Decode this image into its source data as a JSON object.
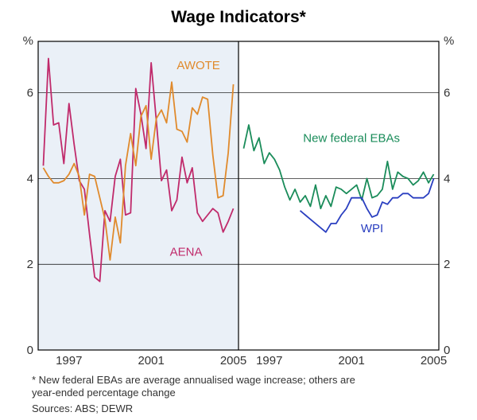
{
  "title": "Wage Indicators*",
  "title_fontsize": 21,
  "title_fontweight": "bold",
  "yaxis_label_left": "%",
  "yaxis_label_right": "%",
  "axis_font_color": "#333333",
  "tick_fontsize": 15,
  "footnote": "*  New federal EBAs are average annualised wage increase; others are\n    year-ended percentage change",
  "sources": "Sources:  ABS; DEWR",
  "footnote_fontsize": 13,
  "footnote_color": "#333333",
  "plot_bg_left": "#eaf0f7",
  "plot_bg_right": "#ffffff",
  "gridline_color": "#000000",
  "frame_color": "#000000",
  "ylim": [
    0,
    7.2
  ],
  "yticks": [
    0,
    2,
    4,
    6
  ],
  "xlim": [
    1995.5,
    2005.25
  ],
  "xticks": [
    1997,
    2001,
    2005
  ],
  "line_width": 1.8,
  "series": {
    "AWOTE": {
      "color": "#e08a2c",
      "label": "AWOTE",
      "label_x": 2003.3,
      "label_y": 6.55,
      "points": [
        [
          1995.75,
          4.25
        ],
        [
          1996,
          4.05
        ],
        [
          1996.25,
          3.9
        ],
        [
          1996.5,
          3.9
        ],
        [
          1996.75,
          3.95
        ],
        [
          1997,
          4.1
        ],
        [
          1997.25,
          4.35
        ],
        [
          1997.5,
          4.05
        ],
        [
          1997.75,
          3.15
        ],
        [
          1998,
          4.1
        ],
        [
          1998.25,
          4.05
        ],
        [
          1998.5,
          3.55
        ],
        [
          1998.75,
          3.05
        ],
        [
          1999,
          2.1
        ],
        [
          1999.25,
          3.1
        ],
        [
          1999.5,
          2.5
        ],
        [
          1999.75,
          4.3
        ],
        [
          2000,
          5.05
        ],
        [
          2000.25,
          4.3
        ],
        [
          2000.5,
          5.45
        ],
        [
          2000.75,
          5.7
        ],
        [
          2001,
          4.45
        ],
        [
          2001.25,
          5.4
        ],
        [
          2001.5,
          5.6
        ],
        [
          2001.75,
          5.3
        ],
        [
          2002,
          6.25
        ],
        [
          2002.25,
          5.15
        ],
        [
          2002.5,
          5.1
        ],
        [
          2002.75,
          4.85
        ],
        [
          2003,
          5.65
        ],
        [
          2003.25,
          5.5
        ],
        [
          2003.5,
          5.9
        ],
        [
          2003.75,
          5.85
        ],
        [
          2004,
          4.55
        ],
        [
          2004.25,
          3.55
        ],
        [
          2004.5,
          3.6
        ],
        [
          2004.75,
          4.6
        ],
        [
          2005,
          6.2
        ]
      ]
    },
    "AENA": {
      "color": "#c02a6b",
      "label": "AENA",
      "label_x": 2002.7,
      "label_y": 2.2,
      "points": [
        [
          1995.75,
          4.3
        ],
        [
          1996,
          6.8
        ],
        [
          1996.25,
          5.25
        ],
        [
          1996.5,
          5.3
        ],
        [
          1996.75,
          4.35
        ],
        [
          1997,
          5.75
        ],
        [
          1997.25,
          4.8
        ],
        [
          1997.5,
          3.95
        ],
        [
          1997.75,
          3.75
        ],
        [
          1998,
          2.7
        ],
        [
          1998.25,
          1.7
        ],
        [
          1998.5,
          1.6
        ],
        [
          1998.75,
          3.25
        ],
        [
          1999,
          3.0
        ],
        [
          1999.25,
          4.05
        ],
        [
          1999.5,
          4.45
        ],
        [
          1999.75,
          3.15
        ],
        [
          2000,
          3.2
        ],
        [
          2000.25,
          6.1
        ],
        [
          2000.5,
          5.5
        ],
        [
          2000.75,
          4.7
        ],
        [
          2001,
          6.7
        ],
        [
          2001.25,
          5.35
        ],
        [
          2001.5,
          3.95
        ],
        [
          2001.75,
          4.2
        ],
        [
          2002,
          3.25
        ],
        [
          2002.25,
          3.5
        ],
        [
          2002.5,
          4.5
        ],
        [
          2002.75,
          3.9
        ],
        [
          2003,
          4.25
        ],
        [
          2003.25,
          3.2
        ],
        [
          2003.5,
          3.0
        ],
        [
          2003.75,
          3.15
        ],
        [
          2004,
          3.3
        ],
        [
          2004.25,
          3.2
        ],
        [
          2004.5,
          2.75
        ],
        [
          2004.75,
          3.0
        ],
        [
          2005,
          3.3
        ]
      ]
    },
    "NewFederalEBAs": {
      "color": "#1a8c5a",
      "label": "New federal EBAs",
      "label_x": 2001.0,
      "label_y": 4.85,
      "points": [
        [
          1995.75,
          4.7
        ],
        [
          1996,
          5.25
        ],
        [
          1996.25,
          4.65
        ],
        [
          1996.5,
          4.95
        ],
        [
          1996.75,
          4.35
        ],
        [
          1997,
          4.6
        ],
        [
          1997.25,
          4.45
        ],
        [
          1997.5,
          4.2
        ],
        [
          1997.75,
          3.8
        ],
        [
          1998,
          3.5
        ],
        [
          1998.25,
          3.75
        ],
        [
          1998.5,
          3.45
        ],
        [
          1998.75,
          3.6
        ],
        [
          1999,
          3.35
        ],
        [
          1999.25,
          3.85
        ],
        [
          1999.5,
          3.3
        ],
        [
          1999.75,
          3.6
        ],
        [
          2000,
          3.35
        ],
        [
          2000.25,
          3.8
        ],
        [
          2000.5,
          3.75
        ],
        [
          2000.75,
          3.65
        ],
        [
          2001,
          3.75
        ],
        [
          2001.25,
          3.85
        ],
        [
          2001.5,
          3.5
        ],
        [
          2001.75,
          4.0
        ],
        [
          2002,
          3.55
        ],
        [
          2002.25,
          3.6
        ],
        [
          2002.5,
          3.75
        ],
        [
          2002.75,
          4.4
        ],
        [
          2003,
          3.75
        ],
        [
          2003.25,
          4.15
        ],
        [
          2003.5,
          4.05
        ],
        [
          2003.75,
          4.0
        ],
        [
          2004,
          3.85
        ],
        [
          2004.25,
          3.95
        ],
        [
          2004.5,
          4.15
        ],
        [
          2004.75,
          3.9
        ],
        [
          2005,
          4.1
        ]
      ]
    },
    "WPI": {
      "color": "#2a3fc0",
      "label": "WPI",
      "label_x": 2002.0,
      "label_y": 2.75,
      "points": [
        [
          1998.5,
          3.25
        ],
        [
          1998.75,
          3.15
        ],
        [
          1999,
          3.05
        ],
        [
          1999.25,
          2.95
        ],
        [
          1999.5,
          2.85
        ],
        [
          1999.75,
          2.75
        ],
        [
          2000,
          2.95
        ],
        [
          2000.25,
          2.95
        ],
        [
          2000.5,
          3.15
        ],
        [
          2000.75,
          3.3
        ],
        [
          2001,
          3.55
        ],
        [
          2001.25,
          3.55
        ],
        [
          2001.5,
          3.55
        ],
        [
          2001.75,
          3.3
        ],
        [
          2002,
          3.1
        ],
        [
          2002.25,
          3.15
        ],
        [
          2002.5,
          3.45
        ],
        [
          2002.75,
          3.4
        ],
        [
          2003,
          3.55
        ],
        [
          2003.25,
          3.55
        ],
        [
          2003.5,
          3.65
        ],
        [
          2003.75,
          3.65
        ],
        [
          2004,
          3.55
        ],
        [
          2004.25,
          3.55
        ],
        [
          2004.5,
          3.55
        ],
        [
          2004.75,
          3.65
        ],
        [
          2005,
          4.0
        ]
      ]
    }
  }
}
